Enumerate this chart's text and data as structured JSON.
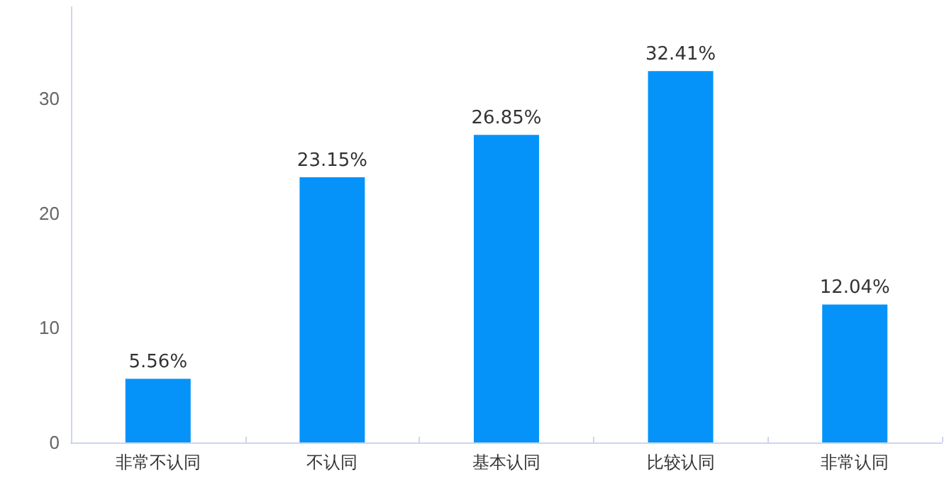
{
  "chart_data": {
    "type": "bar",
    "categories": [
      "非常不认同",
      "不认同",
      "基本认同",
      "比较认同",
      "非常认同"
    ],
    "values": [
      5.56,
      23.15,
      26.85,
      32.41,
      12.04
    ],
    "value_labels": [
      "5.56%",
      "23.15%",
      "26.85%",
      "32.41%",
      "12.04%"
    ],
    "color": "#0593fa",
    "ylim": [
      0,
      38
    ],
    "yticks": [
      0,
      10,
      20,
      30
    ],
    "grid": false
  }
}
